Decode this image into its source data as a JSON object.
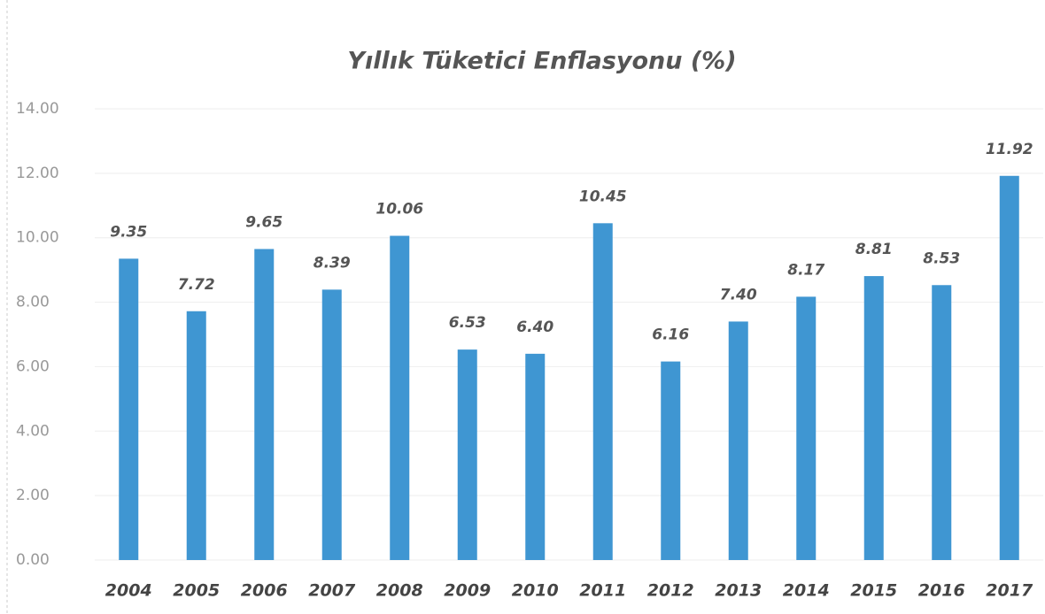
{
  "chart_data": {
    "type": "bar",
    "title": "Yıllık Tüketici Enflasyonu (%)",
    "categories": [
      "2004",
      "2005",
      "2006",
      "2007",
      "2008",
      "2009",
      "2010",
      "2011",
      "2012",
      "2013",
      "2014",
      "2015",
      "2016",
      "2017"
    ],
    "values": [
      9.35,
      7.72,
      9.65,
      8.39,
      10.06,
      6.53,
      6.4,
      10.45,
      6.16,
      7.4,
      8.17,
      8.81,
      8.53,
      11.92
    ],
    "value_labels": [
      "9.35",
      "7.72",
      "9.65",
      "8.39",
      "10.06",
      "6.53",
      "6.40",
      "10.45",
      "6.16",
      "7.40",
      "8.17",
      "8.81",
      "8.53",
      "11.92"
    ],
    "color": "#3f96d2",
    "ylim": [
      0,
      14
    ],
    "yticks": [
      {
        "value": 0,
        "label": "0.00"
      },
      {
        "value": 2,
        "label": "2.00"
      },
      {
        "value": 4,
        "label": "4.00"
      },
      {
        "value": 6,
        "label": "6.00"
      },
      {
        "value": 8,
        "label": "8.00"
      },
      {
        "value": 10,
        "label": "10.00"
      },
      {
        "value": 12,
        "label": "12.00"
      },
      {
        "value": 14,
        "label": "14.00"
      }
    ],
    "grid": true
  }
}
